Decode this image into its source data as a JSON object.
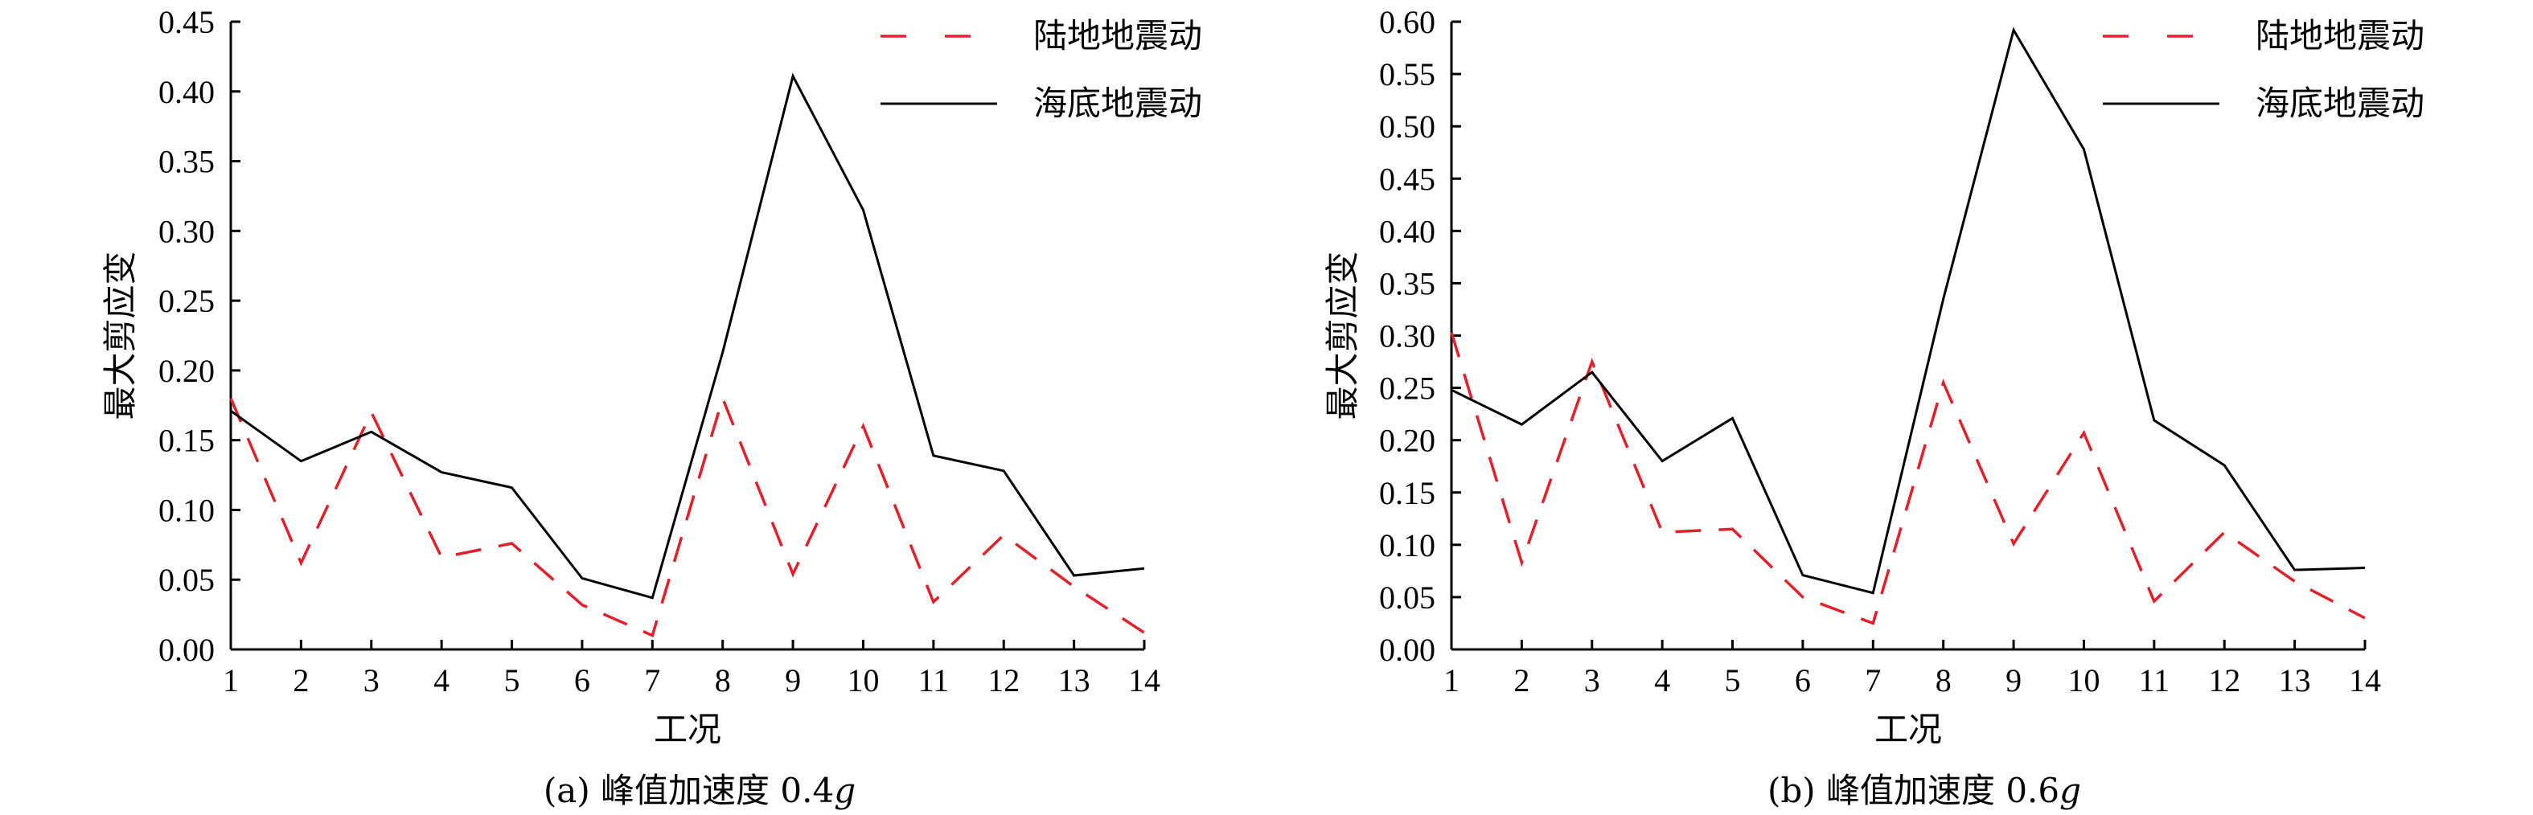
{
  "chart_data": [
    {
      "type": "line",
      "caption_prefix": "(a) 峰值加速度 0.4",
      "caption_g": "g",
      "xlabel": "工况",
      "ylabel": "最大剪应变",
      "x": [
        1,
        2,
        3,
        4,
        5,
        6,
        7,
        8,
        9,
        10,
        11,
        12,
        13,
        14
      ],
      "xlim": [
        1,
        14
      ],
      "ylim": [
        0,
        0.45
      ],
      "yticks": [
        "0.00",
        "0.05",
        "0.10",
        "0.15",
        "0.20",
        "0.25",
        "0.30",
        "0.35",
        "0.40",
        "0.45"
      ],
      "grid": false,
      "legend_position": "top-right",
      "series": [
        {
          "name": "陆地地震动",
          "style": "dashed",
          "color": "#e0202a",
          "values": [
            0.18,
            0.062,
            0.17,
            0.066,
            0.076,
            0.032,
            0.01,
            0.18,
            0.054,
            0.16,
            0.034,
            0.082,
            0.045,
            0.012
          ]
        },
        {
          "name": "海底地震动",
          "style": "solid",
          "color": "#000000",
          "values": [
            0.171,
            0.135,
            0.156,
            0.127,
            0.116,
            0.051,
            0.037,
            0.213,
            0.411,
            0.315,
            0.139,
            0.128,
            0.053,
            0.058
          ]
        }
      ]
    },
    {
      "type": "line",
      "caption_prefix": "(b) 峰值加速度 0.6",
      "caption_g": "g",
      "xlabel": "工况",
      "ylabel": "最大剪应变",
      "x": [
        1,
        2,
        3,
        4,
        5,
        6,
        7,
        8,
        9,
        10,
        11,
        12,
        13,
        14
      ],
      "xlim": [
        1,
        14
      ],
      "ylim": [
        0,
        0.6
      ],
      "yticks": [
        "0.00",
        "0.05",
        "0.10",
        "0.15",
        "0.20",
        "0.25",
        "0.30",
        "0.35",
        "0.40",
        "0.45",
        "0.50",
        "0.55",
        "0.60"
      ],
      "grid": false,
      "legend_position": "top-right",
      "series": [
        {
          "name": "陆地地震动",
          "style": "dashed",
          "color": "#e0202a",
          "values": [
            0.303,
            0.083,
            0.275,
            0.112,
            0.115,
            0.05,
            0.025,
            0.255,
            0.101,
            0.207,
            0.046,
            0.112,
            0.065,
            0.03
          ]
        },
        {
          "name": "海底地震动",
          "style": "solid",
          "color": "#000000",
          "values": [
            0.248,
            0.215,
            0.265,
            0.18,
            0.221,
            0.071,
            0.054,
            0.335,
            0.592,
            0.478,
            0.219,
            0.176,
            0.076,
            0.078
          ]
        }
      ]
    }
  ]
}
